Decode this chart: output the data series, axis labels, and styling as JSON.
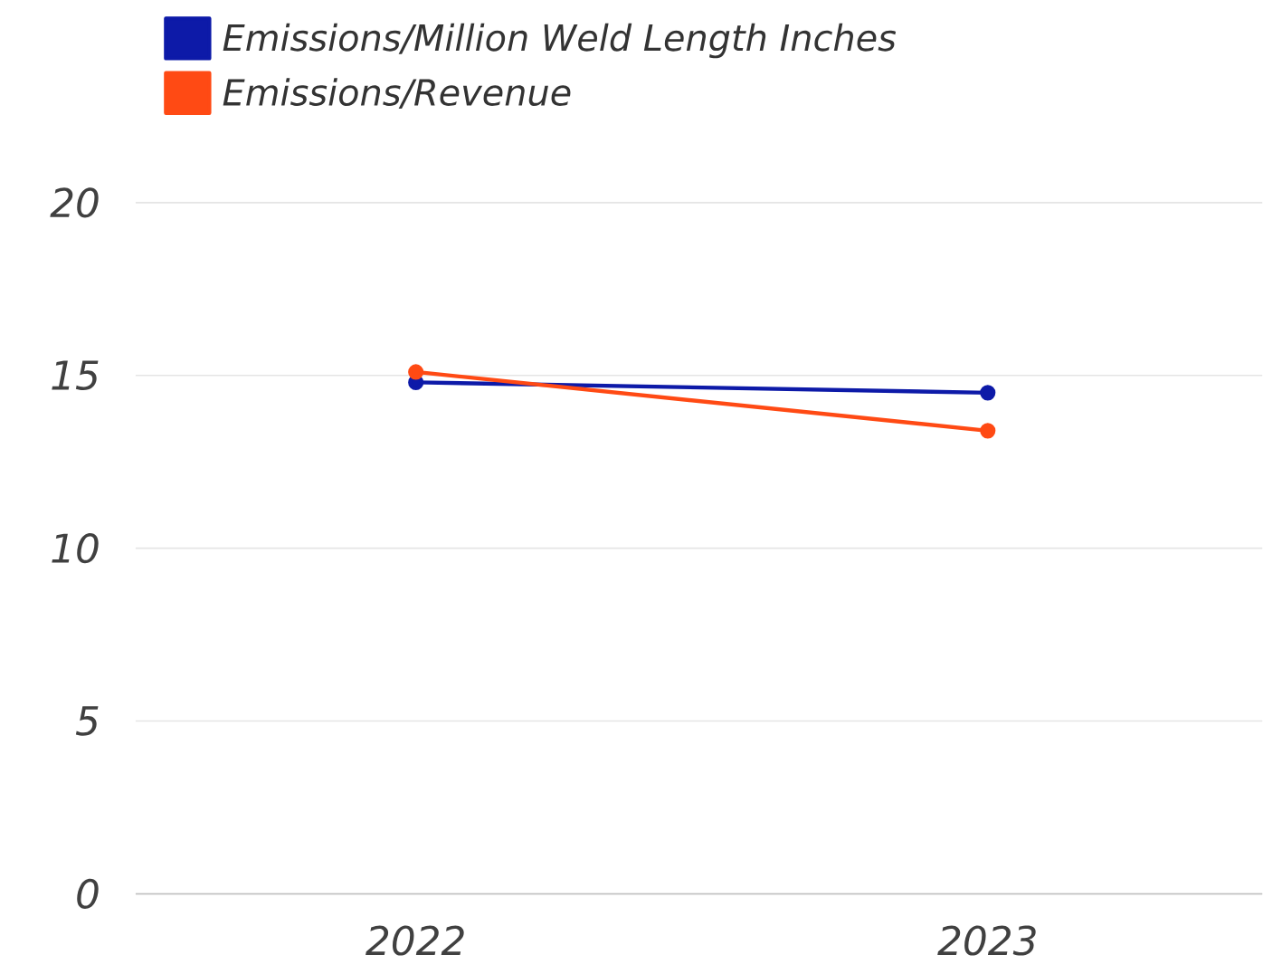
{
  "chart_data": {
    "type": "line",
    "categories": [
      "2022",
      "2023"
    ],
    "series": [
      {
        "name": "Emissions/Million Weld Length Inches",
        "color": "#0d1aa8",
        "values": [
          14.8,
          14.5
        ]
      },
      {
        "name": "Emissions/Revenue",
        "color": "#ff4a14",
        "values": [
          15.1,
          13.4
        ]
      }
    ],
    "ylim": [
      0,
      20
    ],
    "yticks": [
      0,
      5,
      10,
      15,
      20
    ],
    "grid": "y",
    "legend": "top left",
    "marker": "circle",
    "line_style": "solid"
  }
}
